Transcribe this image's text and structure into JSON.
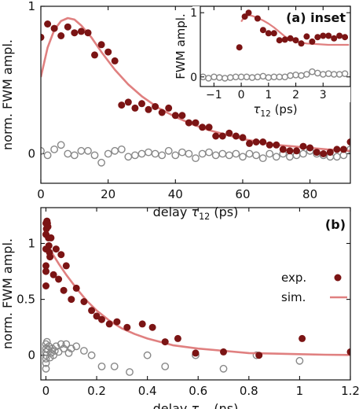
{
  "colors": {
    "exp": "#7b1414",
    "sim": "#e08080",
    "zero": "#888888",
    "axis": "#111111"
  },
  "chart_data": [
    {
      "panel": "(a)",
      "type": "scatter",
      "xlabel": "delay τ12 (ps)",
      "ylabel": "norm. FWM ampl.",
      "xlim": [
        0,
        92
      ],
      "ylim": [
        -0.2,
        1.0
      ],
      "xticks": [
        0,
        20,
        40,
        60,
        80
      ],
      "yticks": [
        0,
        1
      ],
      "series": [
        {
          "name": "exp.",
          "kind": "filled",
          "x": [
            0,
            2,
            4,
            6,
            8,
            10,
            12,
            14,
            16,
            18,
            20,
            22,
            24,
            26,
            28,
            30,
            32,
            34,
            36,
            38,
            40,
            42,
            44,
            46,
            48,
            50,
            52,
            54,
            56,
            58,
            60,
            62,
            64,
            66,
            68,
            70,
            72,
            74,
            76,
            78,
            80,
            82,
            84,
            86,
            88,
            90,
            92
          ],
          "y": [
            0.79,
            0.88,
            0.85,
            0.8,
            0.86,
            0.82,
            0.83,
            0.82,
            0.67,
            0.74,
            0.69,
            0.63,
            0.33,
            0.35,
            0.31,
            0.34,
            0.3,
            0.32,
            0.28,
            0.31,
            0.26,
            0.26,
            0.21,
            0.21,
            0.18,
            0.18,
            0.12,
            0.12,
            0.14,
            0.12,
            0.11,
            0.07,
            0.08,
            0.08,
            0.06,
            0.06,
            0.03,
            0.02,
            0.02,
            0.05,
            0.04,
            0.01,
            0.0,
            0.01,
            0.03,
            0.03,
            0.08
          ]
        },
        {
          "name": "sim.",
          "kind": "line",
          "x": [
            0,
            2,
            4,
            6,
            8,
            10,
            12,
            15,
            18,
            22,
            26,
            30,
            35,
            40,
            45,
            50,
            55,
            60,
            65,
            70,
            75,
            80,
            85,
            92
          ],
          "y": [
            0.52,
            0.72,
            0.84,
            0.9,
            0.92,
            0.91,
            0.87,
            0.79,
            0.69,
            0.57,
            0.47,
            0.39,
            0.31,
            0.25,
            0.2,
            0.16,
            0.13,
            0.1,
            0.08,
            0.06,
            0.05,
            0.04,
            0.03,
            0.02
          ]
        },
        {
          "name": "zero",
          "kind": "open",
          "x": [
            0,
            2,
            4,
            6,
            8,
            10,
            12,
            14,
            16,
            18,
            20,
            22,
            24,
            26,
            28,
            30,
            32,
            34,
            36,
            38,
            40,
            42,
            44,
            46,
            48,
            50,
            52,
            54,
            56,
            58,
            60,
            62,
            64,
            66,
            68,
            70,
            72,
            74,
            76,
            78,
            80,
            82,
            84,
            86,
            88,
            90,
            92
          ],
          "y": [
            0.02,
            -0.01,
            0.03,
            0.06,
            0.0,
            -0.01,
            0.02,
            0.02,
            -0.01,
            -0.06,
            0.0,
            0.02,
            0.03,
            -0.02,
            -0.01,
            0.0,
            0.01,
            0.0,
            -0.01,
            0.02,
            -0.01,
            0.01,
            0.0,
            -0.03,
            0.0,
            0.01,
            -0.01,
            0.0,
            -0.01,
            0.0,
            -0.02,
            0.0,
            -0.01,
            -0.03,
            0.0,
            -0.02,
            0.0,
            -0.02,
            -0.01,
            0.0,
            0.02,
            0.0,
            -0.01,
            -0.02,
            -0.02,
            -0.01,
            0.03
          ]
        }
      ]
    },
    {
      "panel": "(a) inset",
      "type": "scatter",
      "xlabel": "τ12 (ps)",
      "ylabel": "FWM ampl.",
      "xlim": [
        -1.5,
        4.0
      ],
      "ylim": [
        -0.15,
        1.1
      ],
      "xticks": [
        -1,
        0,
        1,
        2,
        3
      ],
      "yticks": [
        0,
        1
      ],
      "series": [
        {
          "name": "exp.",
          "kind": "filled",
          "x": [
            -0.07,
            0.13,
            0.27,
            0.6,
            0.8,
            1.0,
            1.2,
            1.4,
            1.6,
            1.8,
            2.0,
            2.2,
            2.4,
            2.6,
            2.8,
            3.0,
            3.2,
            3.4,
            3.6,
            3.8
          ],
          "y": [
            0.46,
            0.94,
            1.0,
            0.91,
            0.73,
            0.68,
            0.68,
            0.57,
            0.58,
            0.6,
            0.57,
            0.52,
            0.63,
            0.55,
            0.62,
            0.64,
            0.64,
            0.6,
            0.64,
            0.62
          ]
        },
        {
          "name": "sim.",
          "kind": "line",
          "x": [
            0.0,
            0.1,
            0.2,
            0.3,
            0.4,
            0.6,
            0.8,
            1.0,
            1.2,
            1.4,
            1.6,
            1.8,
            2.0,
            2.4,
            2.8,
            3.2,
            3.6,
            3.95
          ],
          "y": [
            0.86,
            0.93,
            0.96,
            0.96,
            0.95,
            0.92,
            0.88,
            0.83,
            0.77,
            0.7,
            0.63,
            0.58,
            0.55,
            0.52,
            0.51,
            0.5,
            0.5,
            0.5
          ]
        },
        {
          "name": "zero",
          "kind": "open",
          "x": [
            -1.4,
            -1.2,
            -1.0,
            -0.8,
            -0.6,
            -0.4,
            -0.2,
            0.0,
            0.2,
            0.4,
            0.6,
            0.8,
            1.0,
            1.2,
            1.4,
            1.6,
            1.8,
            2.0,
            2.2,
            2.4,
            2.6,
            2.8,
            3.0,
            3.2,
            3.4,
            3.6,
            3.8
          ],
          "y": [
            0.0,
            -0.02,
            0.0,
            -0.01,
            -0.02,
            -0.01,
            0.0,
            0.0,
            0.0,
            -0.01,
            0.0,
            0.01,
            -0.01,
            0.0,
            0.0,
            0.0,
            0.02,
            0.03,
            0.02,
            0.04,
            0.08,
            0.06,
            0.04,
            0.05,
            0.04,
            0.04,
            0.05
          ]
        }
      ]
    },
    {
      "panel": "(b)",
      "type": "scatter",
      "xlabel": "delay τ23 (ns)",
      "ylabel": "norm. FWM ampl.",
      "xlim": [
        -0.02,
        1.2
      ],
      "ylim": [
        -0.22,
        1.32
      ],
      "xticks": [
        0,
        0.2,
        0.4,
        0.6,
        0.8,
        1.0,
        1.2
      ],
      "yticks": [
        0,
        0.5,
        1
      ],
      "legend": "right",
      "series": [
        {
          "name": "exp.",
          "kind": "filled",
          "x": [
            0.0,
            0.0,
            0.0,
            0.0,
            0.0,
            0.0,
            0.002,
            0.004,
            0.006,
            0.008,
            0.01,
            0.012,
            0.014,
            0.016,
            0.02,
            0.03,
            0.04,
            0.05,
            0.06,
            0.07,
            0.08,
            0.1,
            0.12,
            0.15,
            0.18,
            0.2,
            0.22,
            0.25,
            0.28,
            0.32,
            0.38,
            0.42,
            0.47,
            0.52,
            0.59,
            0.7,
            0.84,
            1.01,
            1.2
          ],
          "y": [
            0.62,
            0.75,
            0.8,
            0.95,
            1.08,
            1.18,
            1.13,
            1.2,
            1.18,
            1.15,
            1.05,
            0.98,
            0.92,
            0.88,
            1.05,
            0.72,
            0.95,
            0.68,
            0.9,
            0.58,
            0.8,
            0.5,
            0.6,
            0.48,
            0.4,
            0.35,
            0.32,
            0.28,
            0.3,
            0.25,
            0.28,
            0.25,
            0.12,
            0.15,
            0.02,
            0.03,
            0.0,
            0.15,
            0.03
          ]
        },
        {
          "name": "sim.",
          "kind": "line",
          "x": [
            0.0,
            0.02,
            0.05,
            0.08,
            0.12,
            0.16,
            0.2,
            0.25,
            0.3,
            0.35,
            0.4,
            0.5,
            0.6,
            0.7,
            0.8,
            0.9,
            1.0,
            1.1,
            1.2
          ],
          "y": [
            1.0,
            0.93,
            0.82,
            0.72,
            0.6,
            0.49,
            0.4,
            0.31,
            0.24,
            0.19,
            0.15,
            0.09,
            0.06,
            0.04,
            0.02,
            0.015,
            0.01,
            0.005,
            0.003
          ]
        },
        {
          "name": "zero",
          "kind": "open",
          "x": [
            0.0,
            0.0,
            0.0,
            0.0,
            0.0,
            0.0,
            0.0,
            0.004,
            0.008,
            0.012,
            0.016,
            0.02,
            0.025,
            0.03,
            0.035,
            0.04,
            0.05,
            0.06,
            0.07,
            0.08,
            0.09,
            0.1,
            0.12,
            0.15,
            0.18,
            0.22,
            0.27,
            0.33,
            0.4,
            0.47,
            0.59,
            0.7,
            0.83,
            1.0
          ],
          "y": [
            0.0,
            0.03,
            0.06,
            0.1,
            -0.03,
            -0.07,
            -0.12,
            0.12,
            0.05,
            0.08,
            -0.02,
            0.02,
            0.06,
            0.0,
            0.04,
            0.08,
            0.03,
            0.1,
            0.06,
            0.1,
            0.02,
            0.06,
            0.08,
            0.04,
            0.0,
            -0.1,
            -0.1,
            -0.15,
            0.0,
            -0.1,
            0.0,
            -0.12,
            0.0,
            -0.05
          ]
        }
      ]
    }
  ],
  "legend": {
    "exp_label": "exp.",
    "sim_label": "sim."
  }
}
